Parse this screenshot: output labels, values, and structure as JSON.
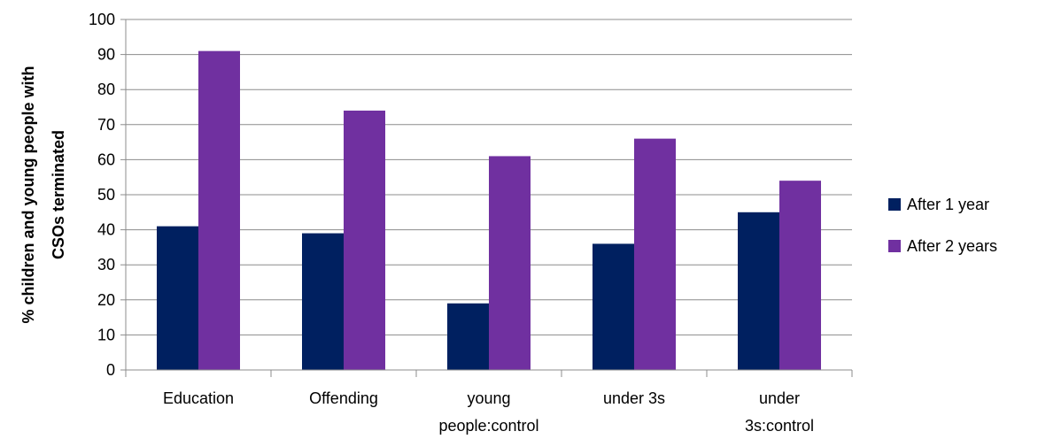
{
  "chart_data": {
    "type": "bar",
    "categories": [
      [
        "Education"
      ],
      [
        "Offending"
      ],
      [
        "young",
        "people:control"
      ],
      [
        "under 3s"
      ],
      [
        "under",
        "3s:control"
      ]
    ],
    "series": [
      {
        "name": "After 1 year",
        "color": "#002060",
        "values": [
          41,
          39,
          19,
          36,
          45
        ]
      },
      {
        "name": "After 2 years",
        "color": "#7030a0",
        "values": [
          91,
          74,
          61,
          66,
          54
        ]
      }
    ],
    "title": "",
    "xlabel": "",
    "ylabel": [
      "% children and young people with",
      "CSOs terminated"
    ],
    "ylim": [
      0,
      100
    ],
    "yticks": [
      0,
      10,
      20,
      30,
      40,
      50,
      60,
      70,
      80,
      90,
      100
    ],
    "grid": true,
    "legend_position": "right"
  }
}
